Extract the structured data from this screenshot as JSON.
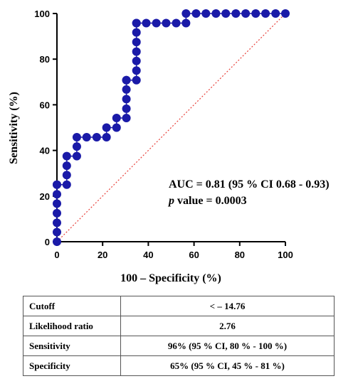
{
  "chart_data": {
    "type": "line",
    "title": "",
    "xlabel": "100 – Specificity (%)",
    "ylabel": "Sensitivity (%)",
    "xlim": [
      0,
      100
    ],
    "ylim": [
      0,
      100
    ],
    "xticks": [
      "0",
      "20",
      "40",
      "60",
      "80",
      "100"
    ],
    "yticks": [
      "0",
      "20",
      "40",
      "60",
      "80",
      "100"
    ],
    "grid": false,
    "series": [
      {
        "color": "#1a1aa8",
        "x": [
          0,
          0,
          0,
          0,
          0,
          0,
          0,
          0,
          4.3,
          4.3,
          4.3,
          4.3,
          8.7,
          8.7,
          8.7,
          13,
          17.4,
          21.7,
          21.7,
          26.1,
          26.1,
          30.4,
          30.4,
          30.4,
          30.4,
          30.4,
          30.4,
          34.8,
          34.8,
          34.8,
          34.8,
          34.8,
          34.8,
          34.8,
          34.8,
          39.1,
          43.5,
          47.8,
          52.2,
          56.5,
          56.5,
          60.9,
          65.2,
          69.6,
          73.9,
          78.3,
          82.6,
          87,
          91.3,
          95.7,
          100
        ],
        "y": [
          0,
          4.2,
          8.3,
          12.5,
          16.7,
          20.8,
          25,
          25,
          25,
          29.2,
          33.3,
          37.5,
          37.5,
          41.7,
          45.8,
          45.8,
          45.8,
          45.8,
          50,
          50,
          54.2,
          54.2,
          58.3,
          62.5,
          66.7,
          70.8,
          70.8,
          70.8,
          75,
          79.2,
          83.3,
          87.5,
          91.7,
          95.8,
          95.8,
          95.8,
          95.8,
          95.8,
          95.8,
          95.8,
          100,
          100,
          100,
          100,
          100,
          100,
          100,
          100,
          100,
          100,
          100
        ]
      },
      {
        "color": "#e8403a",
        "style": "dotted",
        "x": [
          0,
          100
        ],
        "y": [
          0,
          100
        ]
      }
    ],
    "annotations": [
      "AUC = 0.81 (95 % CI 0.68 - 0.93)",
      "p",
      " value = 0.0003"
    ]
  },
  "table": [
    {
      "key": "Cutoff",
      "value": "< – 14.76"
    },
    {
      "key": "Likelihood ratio",
      "value": "2.76"
    },
    {
      "key": "Sensitivity",
      "value": "96% (95 % CI, 80 % - 100 %)"
    },
    {
      "key": "Specificity",
      "value": "65% (95 % CI, 45 % - 81 %)"
    }
  ]
}
